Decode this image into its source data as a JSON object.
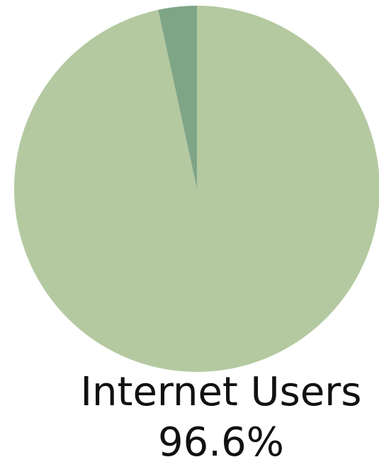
{
  "chart_data": {
    "type": "pie",
    "slices": [
      {
        "label": "Internet Users",
        "value": 96.6,
        "value_label": "96.6%",
        "color": "#b4c9a0"
      },
      {
        "label": "",
        "value": 3.4,
        "color": "#7fa587"
      }
    ],
    "start": "top",
    "direction": "clockwise",
    "legend": "none"
  }
}
